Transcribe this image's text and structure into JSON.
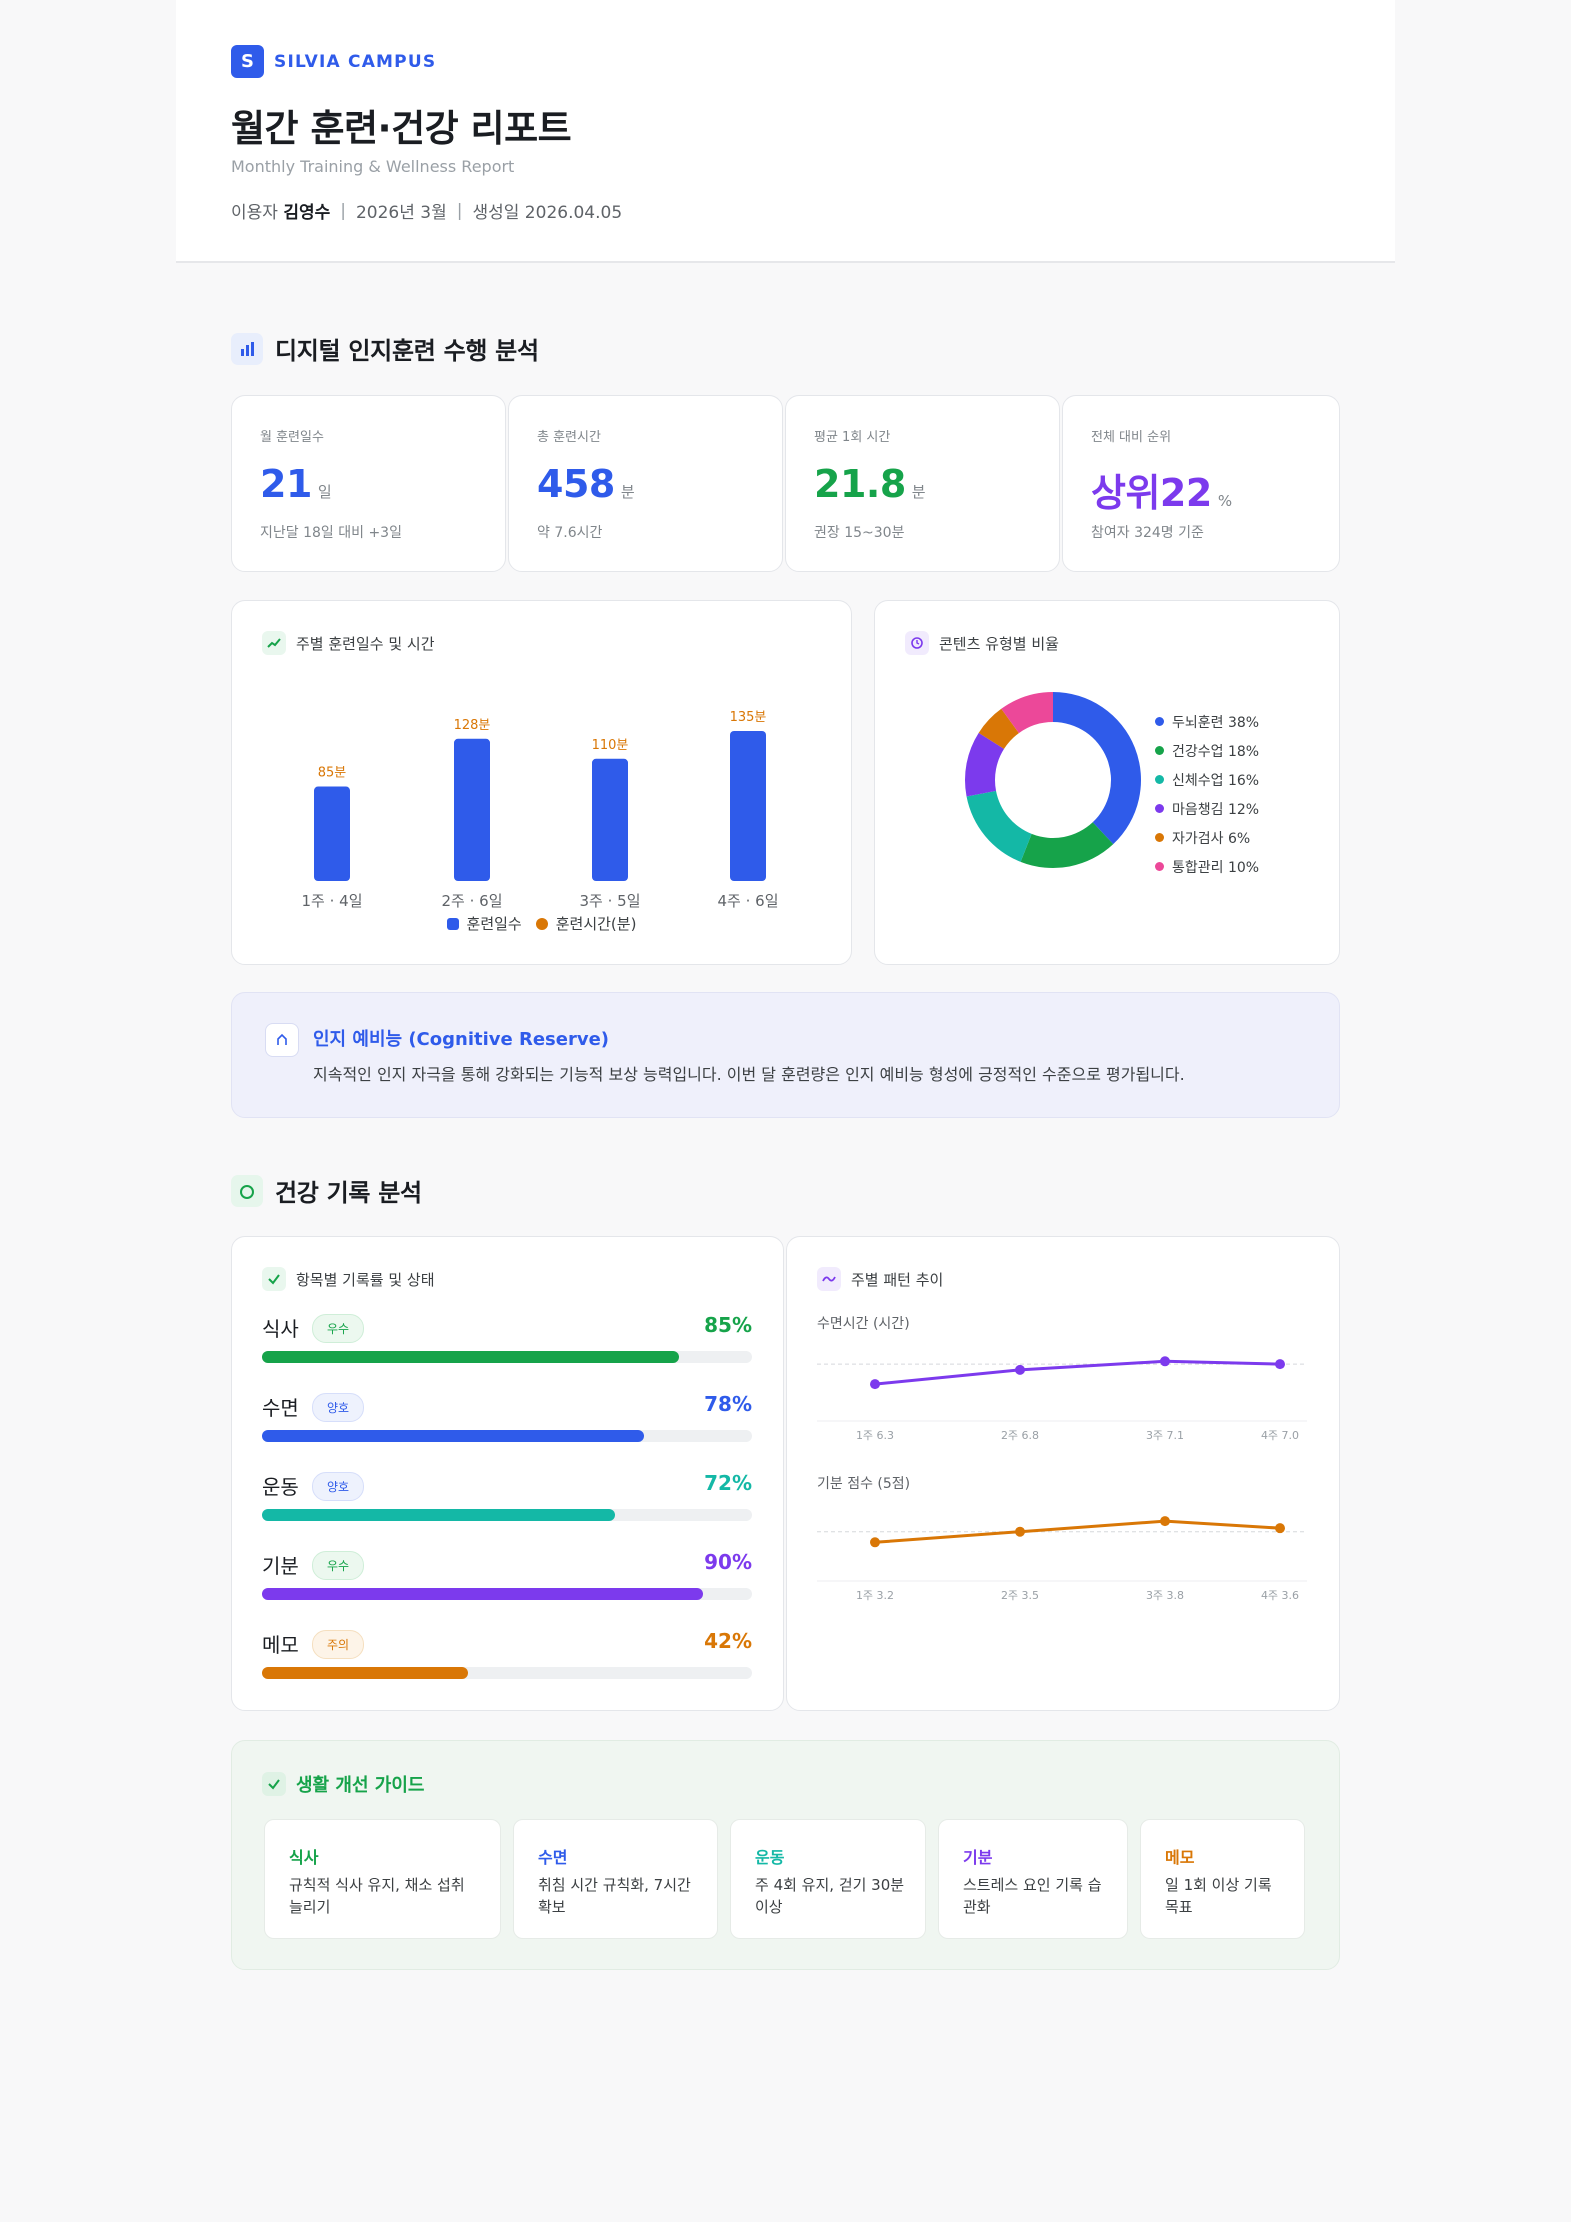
{
  "brand": {
    "logo_letter": "S",
    "name": "SILVIA CAMPUS"
  },
  "report": {
    "title": "월간 훈련·건강 리포트",
    "subtitle": "Monthly Training & Wellness Report",
    "user_label": "이용자",
    "user_name": "김영수",
    "period": "2026년 3월",
    "generated": "생성일 2026.04.05",
    "separator": "|"
  },
  "section1": {
    "title": "디지털 인지훈련 수행 분석"
  },
  "stats": [
    {
      "label": "월 훈련일수",
      "value": "21",
      "unit": "일",
      "note": "지난달 18일 대비 +3일",
      "color": "#2f5bea"
    },
    {
      "label": "총 훈련시간",
      "value": "458",
      "unit": "분",
      "note": "약 7.6시간",
      "color": "#2f5bea"
    },
    {
      "label": "평균 1회 시간",
      "value": "21.8",
      "unit": "분",
      "note": "권장 15~30분",
      "color": "#16a34a"
    },
    {
      "label": "전체 대비 순위",
      "value": "상위22",
      "unit": "%",
      "note": "참여자 324명 기준",
      "color": "#7c3aed"
    }
  ],
  "weekly_card": {
    "title": "주별 훈련일수 및 시간",
    "legend_days": "훈련일수",
    "legend_minutes": "훈련시간(분)"
  },
  "content_card": {
    "title": "콘텐츠 유형별 비율"
  },
  "cognitive": {
    "title": "인지 예비능 (Cognitive Reserve)",
    "text": "지속적인 인지 자극을 통해 강화되는 기능적 보상 능력입니다. 이번 달 훈련량은 인지 예비능 형성에 긍정적인 수준으로 평가됩니다."
  },
  "section2": {
    "title": "건강 기록 분석"
  },
  "records_card": {
    "title": "항목별 기록률 및 상태"
  },
  "health_rows": [
    {
      "name": "식사",
      "badge": "우수",
      "badge_color": "#16a34a",
      "badge_bg": "#ecf8ef",
      "pct": 85,
      "pct_label": "85%",
      "color": "#16a34a"
    },
    {
      "name": "수면",
      "badge": "양호",
      "badge_color": "#2f5bea",
      "badge_bg": "#eef2fd",
      "pct": 78,
      "pct_label": "78%",
      "color": "#2f5bea"
    },
    {
      "name": "운동",
      "badge": "양호",
      "badge_color": "#2f5bea",
      "badge_bg": "#eef2fd",
      "pct": 72,
      "pct_label": "72%",
      "color": "#14b8a6"
    },
    {
      "name": "기분",
      "badge": "우수",
      "badge_color": "#16a34a",
      "badge_bg": "#ecf8ef",
      "pct": 90,
      "pct_label": "90%",
      "color": "#7c3aed"
    },
    {
      "name": "메모",
      "badge": "주의",
      "badge_color": "#d97706",
      "badge_bg": "#fdf4e8",
      "pct": 42,
      "pct_label": "42%",
      "color": "#d97706"
    }
  ],
  "pattern_card": {
    "title": "주별 패턴 추이"
  },
  "guide": {
    "title": "생활 개선 가이드",
    "items": [
      {
        "cat": "식사",
        "text": "규칙적 식사 유지, 채소 섭취 늘리기",
        "color": "#16a34a"
      },
      {
        "cat": "수면",
        "text": "취침 시간 규칙화, 7시간 확보",
        "color": "#2f5bea"
      },
      {
        "cat": "운동",
        "text": "주 4회 유지, 걷기 30분 이상",
        "color": "#14b8a6"
      },
      {
        "cat": "기분",
        "text": "스트레스 요인 기록 습관화",
        "color": "#7c3aed"
      },
      {
        "cat": "메모",
        "text": "일 1회 이상 기록 목표",
        "color": "#d97706"
      }
    ]
  },
  "chart_data": [
    {
      "type": "bar",
      "categories": [
        "1주 · 4일",
        "2주 · 6일",
        "3주 · 5일",
        "4주 · 6일"
      ],
      "series": [
        {
          "name": "훈련일수",
          "values": [
            4,
            6,
            5,
            6
          ]
        },
        {
          "name": "훈련시간(분)",
          "values": [
            85,
            128,
            110,
            135
          ]
        }
      ],
      "data_labels": [
        "85분",
        "128분",
        "110분",
        "135분"
      ],
      "bar_color": "#2f5bea",
      "label_color": "#d97706"
    },
    {
      "type": "pie",
      "categories": [
        "두뇌훈련",
        "건강수업",
        "신체수업",
        "마음챙김",
        "자가검사",
        "통합관리"
      ],
      "values": [
        38,
        18,
        16,
        12,
        6,
        10
      ],
      "labels": [
        "두뇌훈련 38%",
        "건강수업 18%",
        "신체수업 16%",
        "마음챙김 12%",
        "자가검사 6%",
        "통합관리 10%"
      ],
      "colors": [
        "#2f5bea",
        "#16a34a",
        "#14b8a6",
        "#7c3aed",
        "#d97706",
        "#ec4899"
      ]
    },
    {
      "type": "line",
      "title": "수면시간 (시간)",
      "x": [
        "1주 6.3",
        "2주 6.8",
        "3주 7.1",
        "4주 7.0"
      ],
      "values": [
        6.3,
        6.8,
        7.1,
        7.0
      ],
      "ylim": [
        5.5,
        7.6
      ],
      "ref": 7.0,
      "color": "#7c3aed"
    },
    {
      "type": "line",
      "title": "기분 점수 (5점)",
      "x": [
        "1주 3.2",
        "2주 3.5",
        "3주 3.8",
        "4주 3.6"
      ],
      "values": [
        3.2,
        3.5,
        3.8,
        3.6
      ],
      "ylim": [
        2.5,
        4.2
      ],
      "ref": 3.5,
      "color": "#d97706"
    }
  ]
}
